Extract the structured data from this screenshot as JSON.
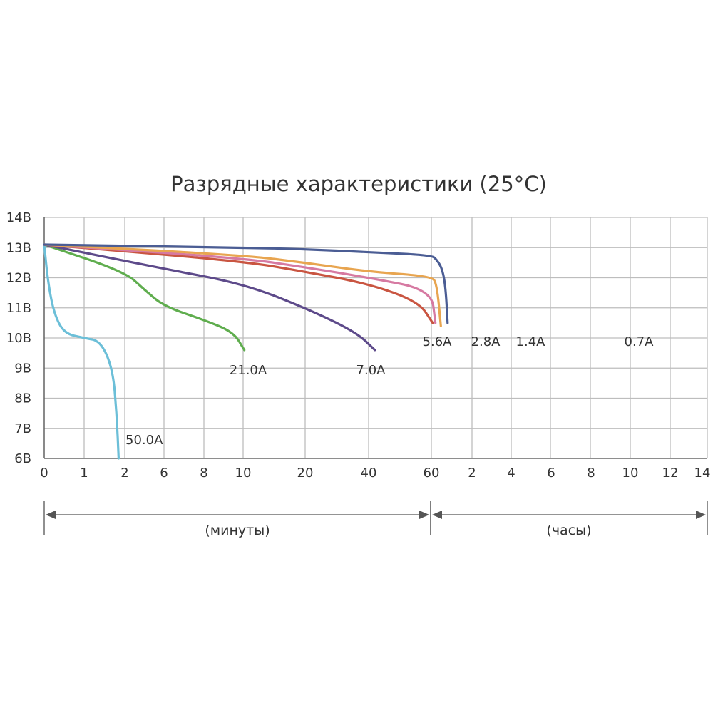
{
  "chart_data": {
    "type": "line",
    "title": "Разрядные характеристики (25°C)",
    "ylabel": "",
    "xlabel": "",
    "y_ticks": [
      "14В",
      "13В",
      "12В",
      "11В",
      "10В",
      "9В",
      "8В",
      "7В",
      "6В"
    ],
    "ylim": [
      6,
      14
    ],
    "x_ticks": [
      "0",
      "1",
      "2",
      "6",
      "8",
      "10",
      "20",
      "40",
      "60",
      "2",
      "4",
      "6",
      "8",
      "10",
      "12",
      "14"
    ],
    "x_ranges": [
      {
        "label": "(минуты)",
        "from": "0",
        "to": "60"
      },
      {
        "label": "(часы)",
        "from": "60",
        "to": "14"
      }
    ],
    "grid": true,
    "series": [
      {
        "name": "50.0A",
        "color": "#6cbfd8",
        "points": [
          [
            0,
            13.1
          ],
          [
            0.1,
            11.8
          ],
          [
            0.25,
            10.8
          ],
          [
            0.5,
            10.15
          ],
          [
            1,
            10.0
          ],
          [
            1.4,
            9.9
          ],
          [
            1.7,
            9.0
          ],
          [
            1.8,
            7.5
          ],
          [
            1.85,
            6.0
          ]
        ]
      },
      {
        "name": "21.0A",
        "color": "#5fad4e",
        "points": [
          [
            0,
            13.1
          ],
          [
            2,
            12.2
          ],
          [
            4,
            11.6
          ],
          [
            6,
            11.05
          ],
          [
            8,
            10.6
          ],
          [
            9.5,
            10.2
          ],
          [
            10.2,
            9.6
          ]
        ]
      },
      {
        "name": "7.0A",
        "color": "#5d4a8a",
        "points": [
          [
            0,
            13.1
          ],
          [
            6,
            12.3
          ],
          [
            10,
            11.8
          ],
          [
            20,
            11.0
          ],
          [
            36,
            10.2
          ],
          [
            42,
            9.6
          ]
        ]
      },
      {
        "name": "5.6A",
        "color": "#c95541",
        "points": [
          [
            0,
            13.1
          ],
          [
            10,
            12.55
          ],
          [
            20,
            12.2
          ],
          [
            40,
            11.8
          ],
          [
            56,
            11.2
          ],
          [
            62,
            10.5
          ]
        ]
      },
      {
        "name": "2.8A",
        "color": "#d67aa2",
        "points": [
          [
            0,
            13.1
          ],
          [
            10,
            12.65
          ],
          [
            20,
            12.35
          ],
          [
            40,
            12.0
          ],
          [
            60,
            11.6
          ],
          [
            66,
            10.5
          ]
        ]
      },
      {
        "name": "1.4A",
        "color": "#e8a550",
        "points": [
          [
            0,
            13.1
          ],
          [
            10,
            12.75
          ],
          [
            20,
            12.5
          ],
          [
            40,
            12.2
          ],
          [
            60,
            12.05
          ],
          [
            68,
            11.8
          ],
          [
            74,
            10.4
          ]
        ]
      },
      {
        "name": "0.7A",
        "color": "#4b5d94",
        "points": [
          [
            0,
            13.1
          ],
          [
            10,
            13.0
          ],
          [
            20,
            12.95
          ],
          [
            40,
            12.85
          ],
          [
            60,
            12.75
          ],
          [
            68,
            12.6
          ],
          [
            76,
            12.3
          ],
          [
            81,
            11.7
          ],
          [
            84,
            10.5
          ]
        ]
      }
    ]
  }
}
